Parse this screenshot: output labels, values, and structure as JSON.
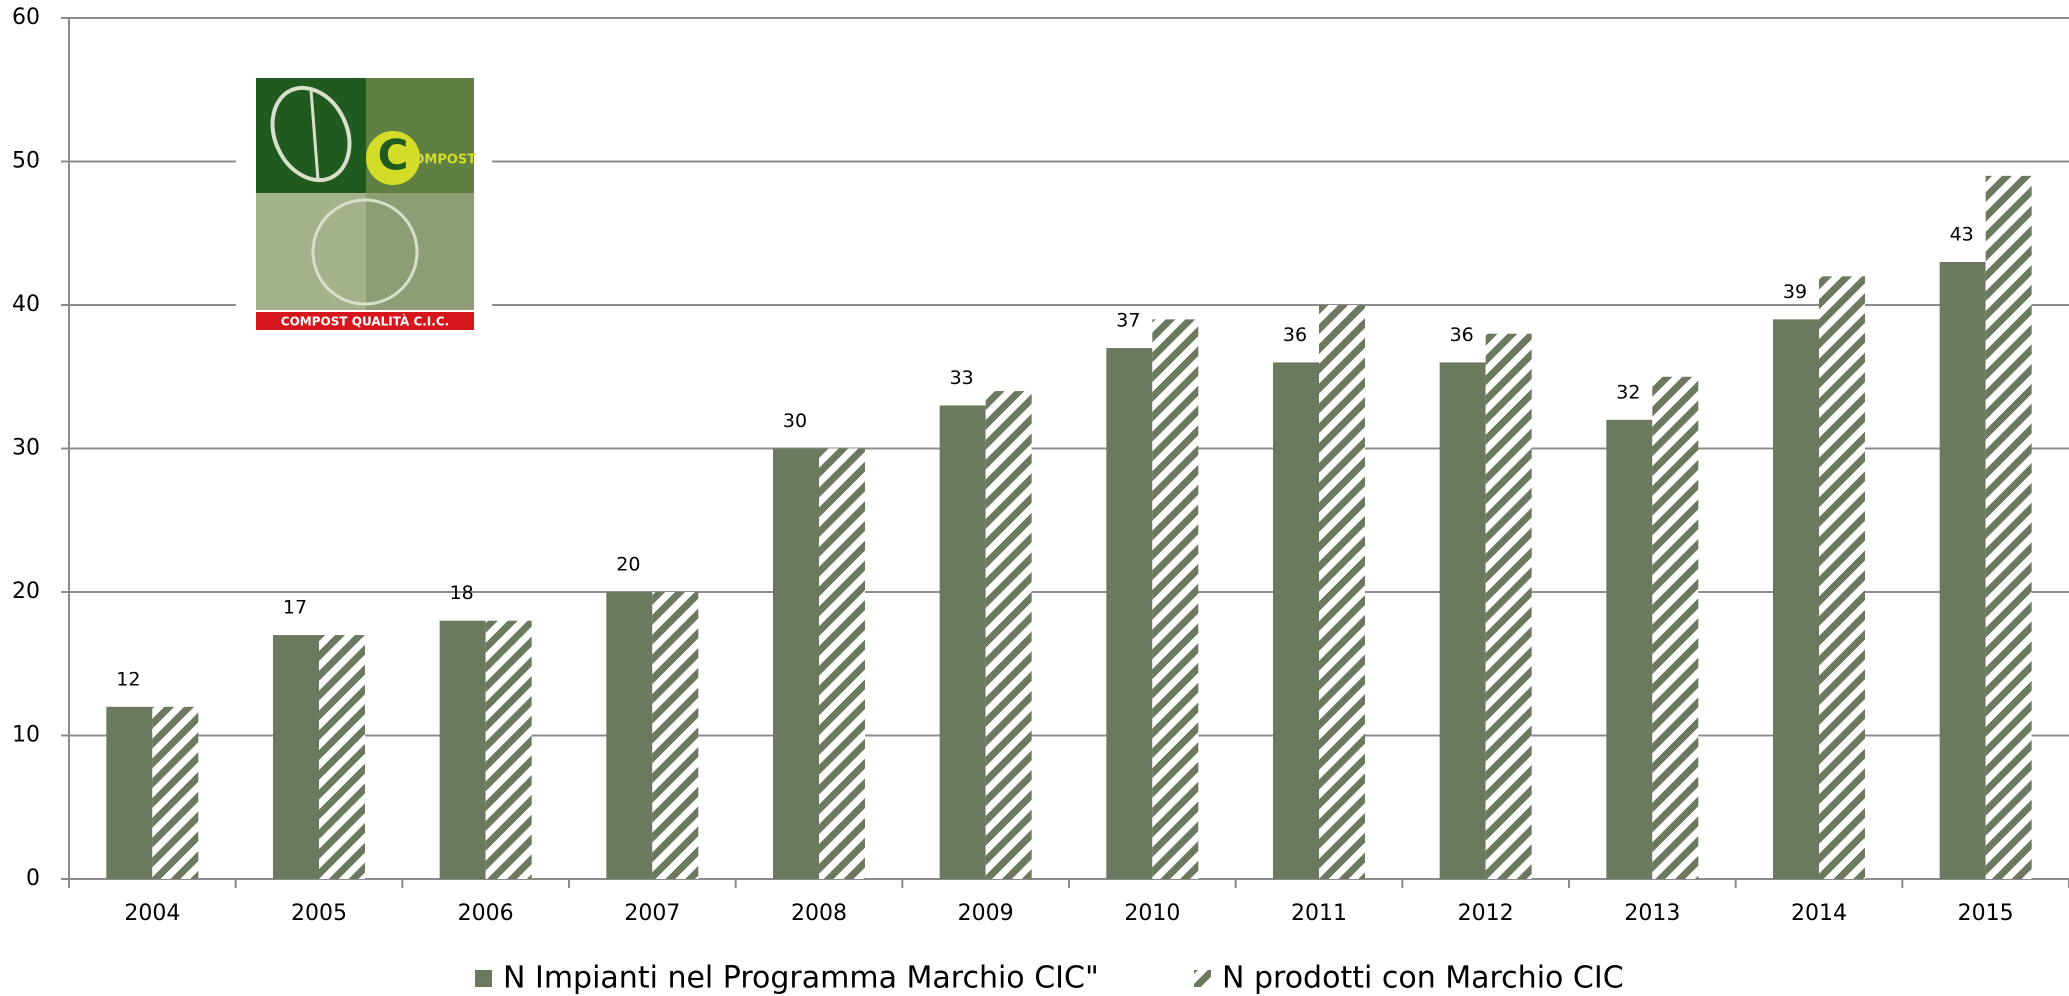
{
  "chart_data": {
    "type": "bar",
    "categories": [
      "2004",
      "2005",
      "2006",
      "2007",
      "2008",
      "2009",
      "2010",
      "2011",
      "2012",
      "2013",
      "2014",
      "2015"
    ],
    "series": [
      {
        "name": "N Impianti nel Programma Marchio CIC\"",
        "color": "#6b7a5f",
        "pattern": "solid",
        "values": [
          12,
          17,
          18,
          20,
          30,
          33,
          37,
          36,
          36,
          32,
          39,
          43
        ]
      },
      {
        "name": "N prodotti con Marchio CIC",
        "color": "#6b7a5f",
        "pattern": "hatch",
        "values": [
          12,
          17,
          18,
          20,
          30,
          34,
          39,
          40,
          38,
          35,
          42,
          49
        ]
      }
    ],
    "value_labels_series": 0,
    "ylim": [
      0,
      60
    ],
    "yticks": [
      0,
      10,
      20,
      30,
      40,
      50,
      60
    ],
    "grid": true,
    "legend": "bottom",
    "logo": {
      "word": "COMPOST",
      "caption": "COMPOST QUALITÀ C.I.C."
    }
  }
}
